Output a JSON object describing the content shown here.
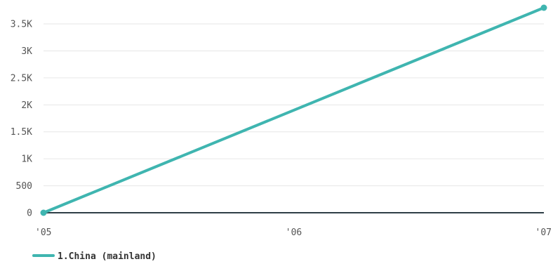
{
  "chart_data": {
    "type": "line",
    "title": "",
    "xlabel": "",
    "ylabel": "",
    "x": [
      "'05",
      "'06",
      "'07"
    ],
    "x_numeric": [
      2005,
      2006,
      2007
    ],
    "xlim": [
      2005,
      2007
    ],
    "ylim": [
      0,
      3800
    ],
    "y_ticks": [
      0,
      500,
      1000,
      1500,
      2000,
      2500,
      3000,
      3500
    ],
    "y_tick_labels": [
      "0",
      "500",
      "1K",
      "1.5K",
      "2K",
      "2.5K",
      "3K",
      "3.5K"
    ],
    "grid": true,
    "legend_position": "bottom-left",
    "series": [
      {
        "name": "1.China (mainland)",
        "color": "#3fb5b0",
        "points": [
          {
            "x": 2005,
            "y": 0
          },
          {
            "x": 2007,
            "y": 3800
          }
        ]
      }
    ]
  },
  "colors": {
    "gridline": "#e6e6e6",
    "baseline": "#2f3e46",
    "tick_text": "#555555"
  }
}
